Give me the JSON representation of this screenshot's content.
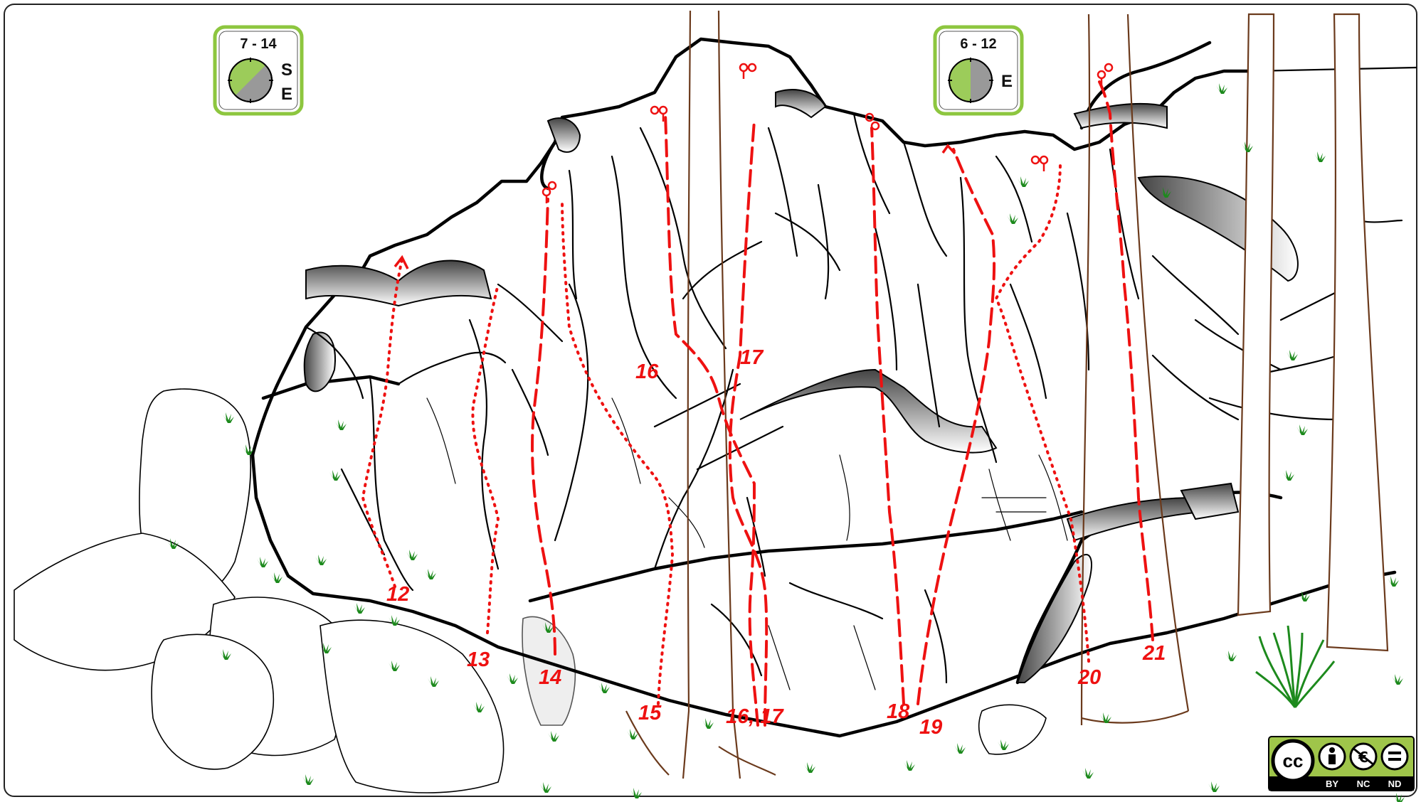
{
  "sun_boxes": [
    {
      "hours": "7 - 14",
      "dir_a": "S",
      "dir_b": "E"
    },
    {
      "hours": "6 - 12",
      "dir_a": "E",
      "dir_b": ""
    }
  ],
  "routes": [
    {
      "label": "12",
      "style": "dotted"
    },
    {
      "label": "13",
      "style": "dotted"
    },
    {
      "label": "14",
      "style": "dashed"
    },
    {
      "label": "15",
      "style": "dotted"
    },
    {
      "label": "16",
      "style": "dashed"
    },
    {
      "label": "16, 17",
      "style": "dashed"
    },
    {
      "label": "17",
      "style": "dashed"
    },
    {
      "label": "18",
      "style": "dashed"
    },
    {
      "label": "19",
      "style": "dashed"
    },
    {
      "label": "20",
      "style": "dotted"
    },
    {
      "label": "21",
      "style": "dashed"
    }
  ],
  "license": {
    "badge": "cc",
    "terms": [
      "BY",
      "NC",
      "ND"
    ]
  },
  "colors": {
    "route": "#ee1111",
    "sun_green": "#9ccc5a",
    "shade_grey": "#999999",
    "tree_brown": "#6b3a1c",
    "grass": "#1d8a1d"
  }
}
